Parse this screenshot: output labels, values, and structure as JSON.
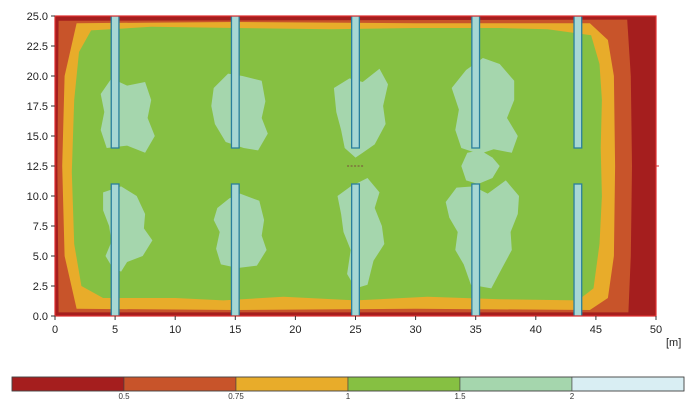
{
  "chart_data": {
    "type": "heatmap",
    "title": "",
    "xlabel": "",
    "ylabel": "",
    "unit_label": "[m]",
    "xlim": [
      0,
      50
    ],
    "ylim": [
      0,
      25
    ],
    "x_ticks": [
      0,
      5,
      10,
      15,
      20,
      25,
      30,
      35,
      40,
      45,
      50
    ],
    "y_ticks": [
      "0.0",
      "2.5",
      "5.0",
      "7.5",
      "10.0",
      "12.5",
      "15.0",
      "17.5",
      "20.0",
      "22.5",
      "25.0"
    ],
    "levels": [
      {
        "range": "< 0.5",
        "color": "#a51e1e"
      },
      {
        "range": "0.5 - 0.75",
        "color": "#c8542a"
      },
      {
        "range": "0.75 - 1",
        "color": "#e8ac2a"
      },
      {
        "range": "1 - 1.5",
        "color": "#86c042"
      },
      {
        "range": "1.5 - 2",
        "color": "#a5d6ad"
      },
      {
        "range": "> 2",
        "color": "#d9eef3"
      }
    ],
    "legend_labels": [
      "0.5",
      "0.75",
      "1",
      "1.5",
      "2"
    ],
    "luminaires_x": [
      5,
      15,
      25,
      35,
      43.5
    ],
    "luminaire_y_ranges": [
      [
        0,
        11
      ],
      [
        14,
        25
      ]
    ],
    "grid": false,
    "legend_position": "bottom"
  }
}
